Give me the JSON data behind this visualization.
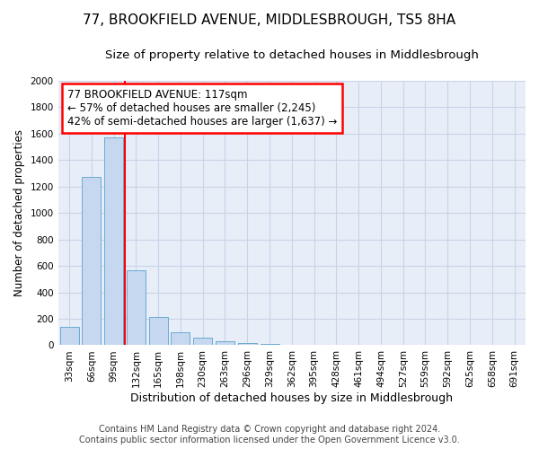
{
  "title": "77, BROOKFIELD AVENUE, MIDDLESBROUGH, TS5 8HA",
  "subtitle": "Size of property relative to detached houses in Middlesbrough",
  "xlabel": "Distribution of detached houses by size in Middlesbrough",
  "ylabel": "Number of detached properties",
  "footer1": "Contains HM Land Registry data © Crown copyright and database right 2024.",
  "footer2": "Contains public sector information licensed under the Open Government Licence v3.0.",
  "categories": [
    "33sqm",
    "66sqm",
    "99sqm",
    "132sqm",
    "165sqm",
    "198sqm",
    "230sqm",
    "263sqm",
    "296sqm",
    "329sqm",
    "362sqm",
    "395sqm",
    "428sqm",
    "461sqm",
    "494sqm",
    "527sqm",
    "559sqm",
    "592sqm",
    "625sqm",
    "658sqm",
    "691sqm"
  ],
  "values": [
    140,
    1270,
    1570,
    570,
    215,
    100,
    55,
    30,
    15,
    10,
    5,
    3,
    1,
    0,
    0,
    0,
    0,
    0,
    0,
    0,
    0
  ],
  "bar_color": "#c5d8f0",
  "bar_edge_color": "#6aaad4",
  "red_line_x": 2.5,
  "annotation_line1": "77 BROOKFIELD AVENUE: 117sqm",
  "annotation_line2": "← 57% of detached houses are smaller (2,245)",
  "annotation_line3": "42% of semi-detached houses are larger (1,637) →",
  "ylim": [
    0,
    2000
  ],
  "yticks": [
    0,
    200,
    400,
    600,
    800,
    1000,
    1200,
    1400,
    1600,
    1800,
    2000
  ],
  "grid_color": "#c8d4e8",
  "bg_color": "#e8eef8",
  "title_fontsize": 11,
  "subtitle_fontsize": 9.5,
  "xlabel_fontsize": 9,
  "ylabel_fontsize": 8.5,
  "tick_fontsize": 7.5,
  "footer_fontsize": 7,
  "annot_fontsize": 8.5
}
